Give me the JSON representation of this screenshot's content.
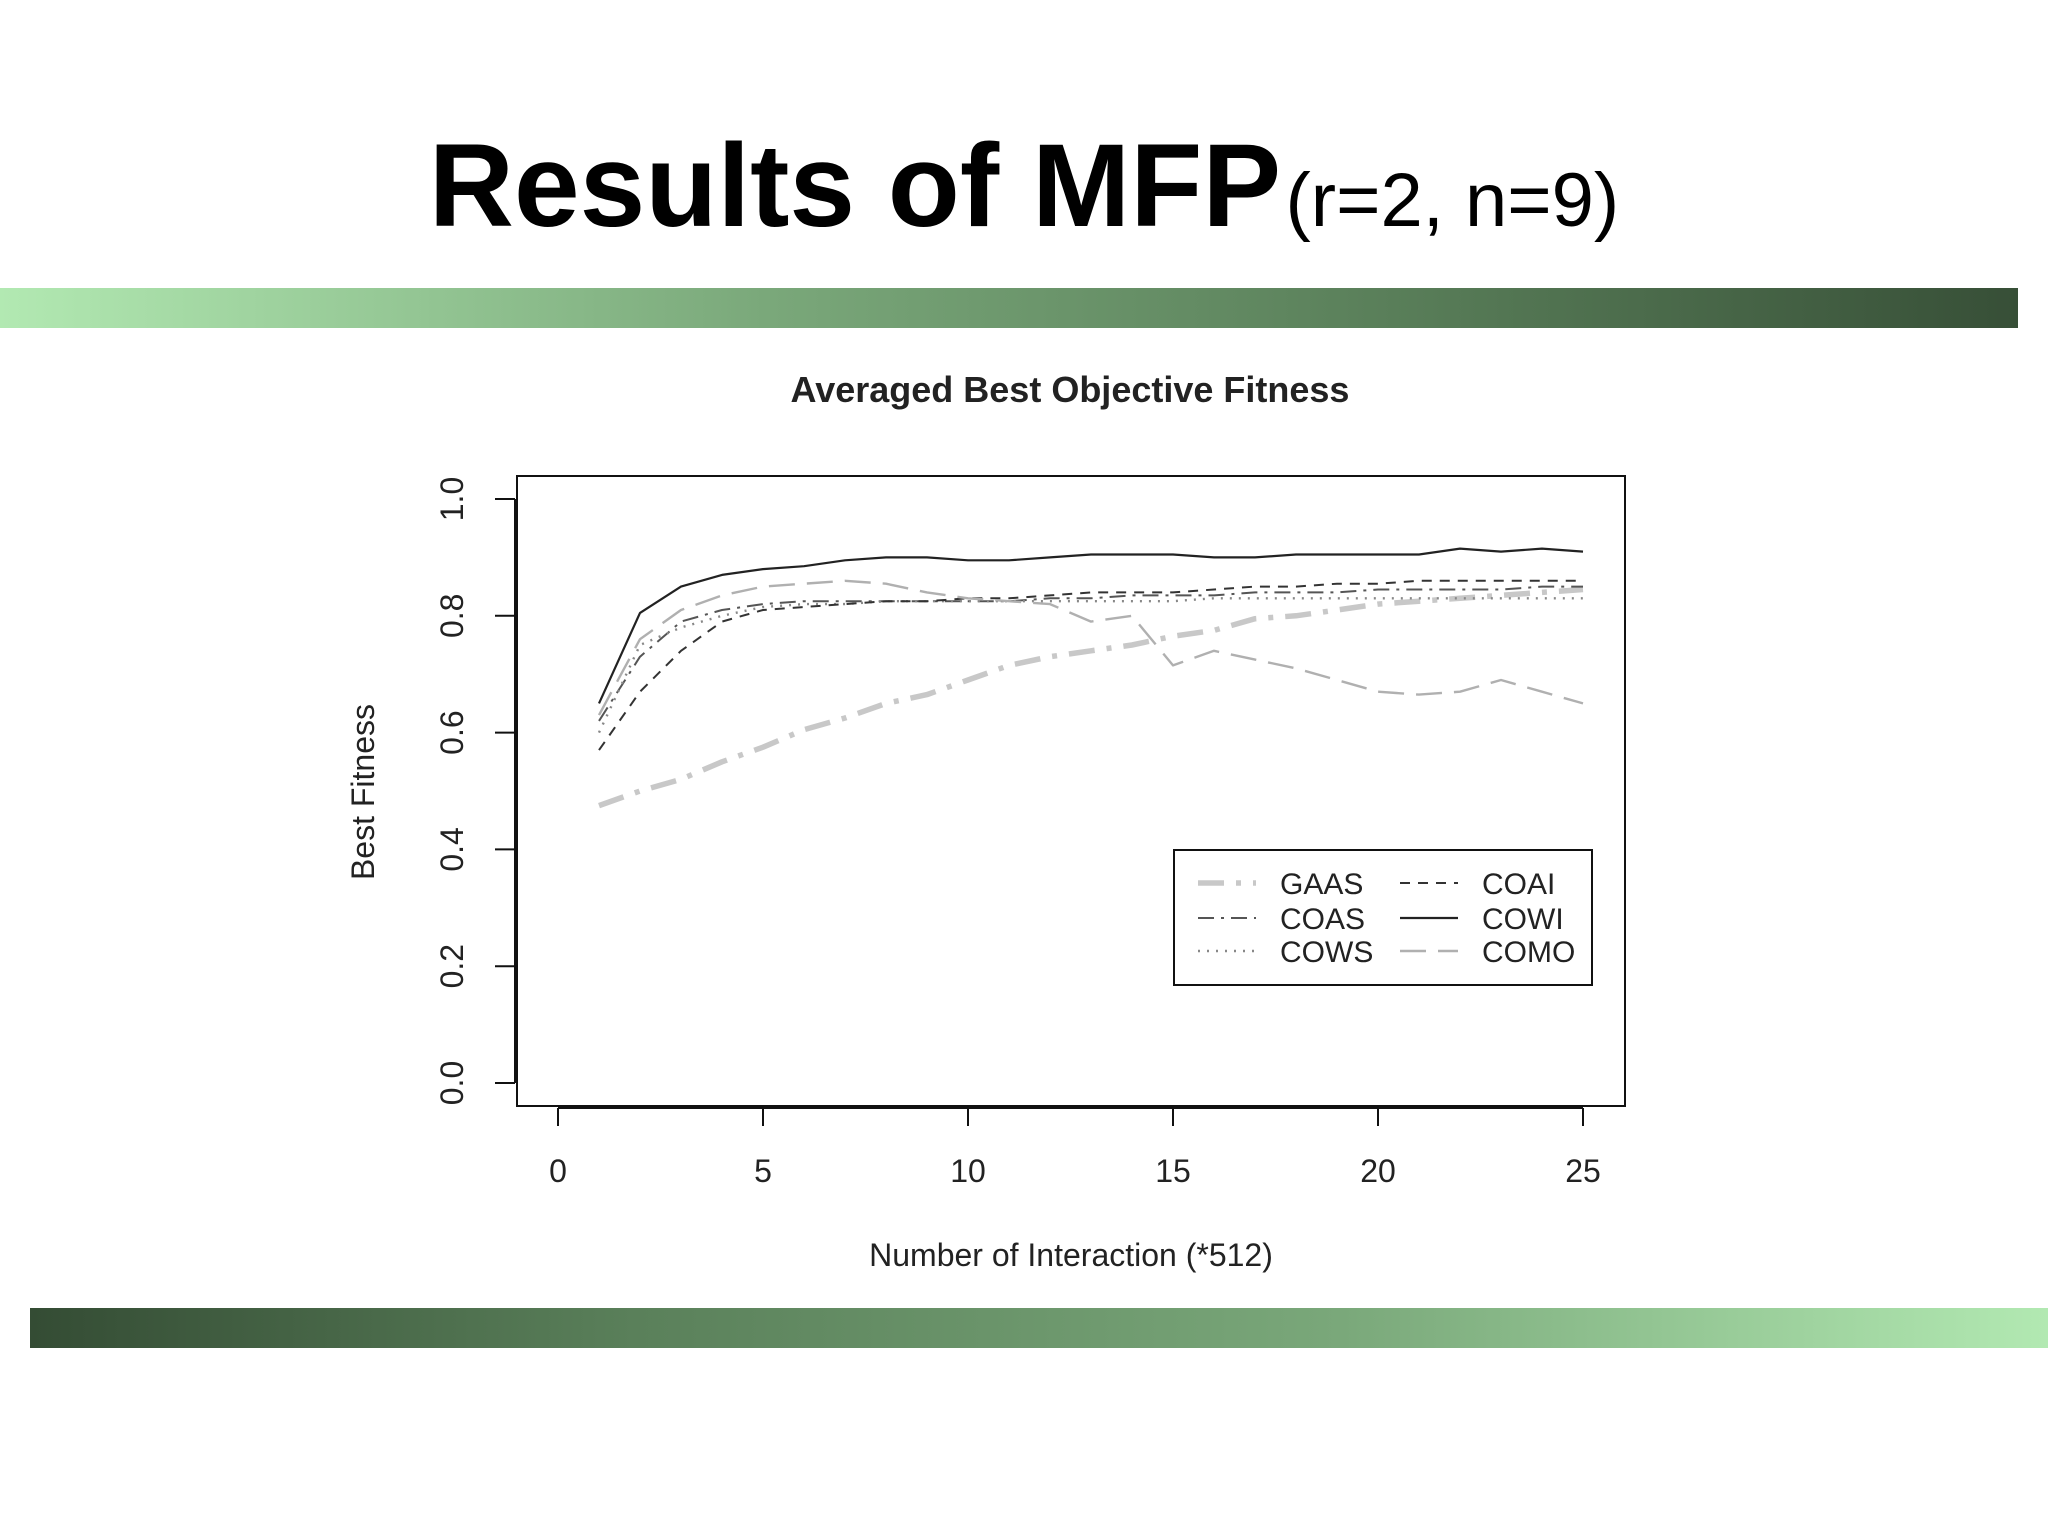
{
  "slide": {
    "title_main": "Results of MFP",
    "title_sub": "(r=2, n=9)"
  },
  "colors": {
    "bar_light": "#b2e9b2",
    "bar_dark": "#374f37"
  },
  "chart_data": {
    "type": "line",
    "title": "Averaged Best Objective Fitness",
    "xlabel": "Number of Interaction (*512)",
    "ylabel": "Best Fitness",
    "xlim": [
      0,
      25
    ],
    "ylim": [
      0.0,
      1.0
    ],
    "xticks": [
      0,
      5,
      10,
      15,
      20,
      25
    ],
    "yticks": [
      0.0,
      0.2,
      0.4,
      0.6,
      0.8,
      1.0
    ],
    "ytick_labels": [
      "0.0",
      "0.2",
      "0.4",
      "0.6",
      "0.8",
      "1.0"
    ],
    "grid": false,
    "legend_position": "bottom-right",
    "x": [
      1,
      2,
      3,
      4,
      5,
      6,
      7,
      8,
      9,
      10,
      11,
      12,
      13,
      14,
      15,
      16,
      17,
      18,
      19,
      20,
      21,
      22,
      23,
      24,
      25
    ],
    "series": [
      {
        "name": "GAAS",
        "style": "long-dash-dot",
        "color": "#c8c8c8",
        "values": [
          0.475,
          0.5,
          0.52,
          0.55,
          0.575,
          0.605,
          0.625,
          0.65,
          0.665,
          0.69,
          0.715,
          0.73,
          0.74,
          0.75,
          0.765,
          0.775,
          0.795,
          0.8,
          0.81,
          0.82,
          0.825,
          0.83,
          0.835,
          0.84,
          0.845
        ]
      },
      {
        "name": "COAS",
        "style": "dash-dot",
        "color": "#555555",
        "values": [
          0.62,
          0.73,
          0.79,
          0.81,
          0.82,
          0.825,
          0.825,
          0.825,
          0.825,
          0.825,
          0.825,
          0.83,
          0.83,
          0.835,
          0.835,
          0.835,
          0.84,
          0.84,
          0.84,
          0.845,
          0.845,
          0.845,
          0.845,
          0.85,
          0.85
        ]
      },
      {
        "name": "COWS",
        "style": "dotted",
        "color": "#888888",
        "values": [
          0.6,
          0.75,
          0.78,
          0.8,
          0.815,
          0.82,
          0.82,
          0.825,
          0.825,
          0.825,
          0.825,
          0.825,
          0.825,
          0.825,
          0.825,
          0.83,
          0.83,
          0.83,
          0.83,
          0.83,
          0.83,
          0.83,
          0.83,
          0.83,
          0.83
        ]
      },
      {
        "name": "COAI",
        "style": "dashed",
        "color": "#333333",
        "values": [
          0.57,
          0.67,
          0.74,
          0.79,
          0.81,
          0.815,
          0.82,
          0.825,
          0.825,
          0.83,
          0.83,
          0.835,
          0.84,
          0.84,
          0.84,
          0.845,
          0.85,
          0.85,
          0.855,
          0.855,
          0.86,
          0.86,
          0.86,
          0.86,
          0.86
        ]
      },
      {
        "name": "COWI",
        "style": "solid",
        "color": "#222222",
        "values": [
          0.65,
          0.805,
          0.85,
          0.87,
          0.88,
          0.885,
          0.895,
          0.9,
          0.9,
          0.895,
          0.895,
          0.9,
          0.905,
          0.905,
          0.905,
          0.9,
          0.9,
          0.905,
          0.905,
          0.905,
          0.905,
          0.915,
          0.91,
          0.915,
          0.91
        ]
      },
      {
        "name": "COMO",
        "style": "long-dash",
        "color": "#b0b0b0",
        "values": [
          0.63,
          0.76,
          0.81,
          0.835,
          0.85,
          0.855,
          0.86,
          0.855,
          0.84,
          0.83,
          0.825,
          0.82,
          0.79,
          0.8,
          0.715,
          0.74,
          0.725,
          0.71,
          0.69,
          0.67,
          0.665,
          0.67,
          0.69,
          0.67,
          0.65
        ]
      }
    ]
  }
}
